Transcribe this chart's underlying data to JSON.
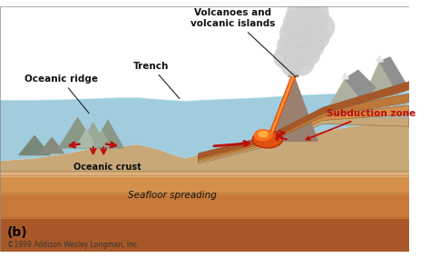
{
  "labels": {
    "volcanoes": "Volcanoes and\nvolcanic islands",
    "trench": "Trench",
    "oceanic_ridge": "Oceanic ridge",
    "oceanic_crust": "Oceanic crust",
    "seafloor": "Seafloor spreading",
    "subduction": "Subduction zone",
    "panel": "(b)",
    "copyright": "©1999 Addison Wesley Longman, Inc."
  },
  "colors": {
    "sky": "#ffffff",
    "ocean1": "#a8d0dc",
    "ocean2": "#88b8cc",
    "crust_tan": "#c8a878",
    "crust_orange": "#d4884a",
    "crust_brown": "#b86830",
    "mantle_dark": "#a05828",
    "mantle_light": "#c87838",
    "rock_grey": "#909090",
    "rock_dark": "#707878",
    "mountain_grey": "#a0a898",
    "continent_grey": "#b0b0a0",
    "lava_orange": "#e86010",
    "lava_red": "#cc2000",
    "lava_yellow": "#ff9020",
    "smoke_grey": "#c8c8c8",
    "arrow_red": "#bb1010"
  },
  "fig_width": 4.74,
  "fig_height": 2.84,
  "dpi": 100
}
